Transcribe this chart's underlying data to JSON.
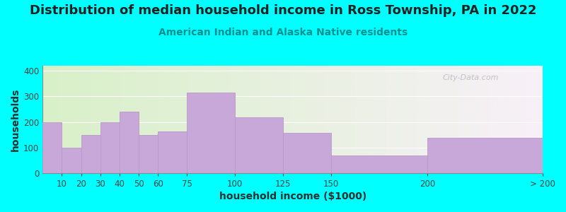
{
  "title": "Distribution of median household income in Ross Township, PA in 2022",
  "subtitle": "American Indian and Alaska Native residents",
  "xlabel": "household income ($1000)",
  "ylabel": "households",
  "bin_edges": [
    0,
    10,
    20,
    30,
    40,
    50,
    60,
    75,
    100,
    125,
    150,
    200,
    260
  ],
  "tick_positions": [
    10,
    20,
    30,
    40,
    50,
    60,
    75,
    100,
    125,
    150,
    200,
    260
  ],
  "tick_labels": [
    "10",
    "20",
    "30",
    "40",
    "50",
    "60",
    "75",
    "100",
    "125",
    "150",
    "200",
    "> 200"
  ],
  "bar_values": [
    200,
    100,
    150,
    200,
    240,
    148,
    163,
    315,
    218,
    158,
    70,
    138
  ],
  "bar_color": "#C8A8D8",
  "bar_edge_color": "#B898C8",
  "ylim": [
    0,
    420
  ],
  "yticks": [
    0,
    100,
    200,
    300,
    400
  ],
  "background_color": "#00FFFF",
  "plot_bg_left": "#D8F0C8",
  "plot_bg_right": "#F8F0F8",
  "title_fontsize": 13,
  "subtitle_fontsize": 10,
  "subtitle_color": "#009090",
  "axis_label_fontsize": 10,
  "watermark": "City-Data.com",
  "watermark_color": "#B8B8C4"
}
